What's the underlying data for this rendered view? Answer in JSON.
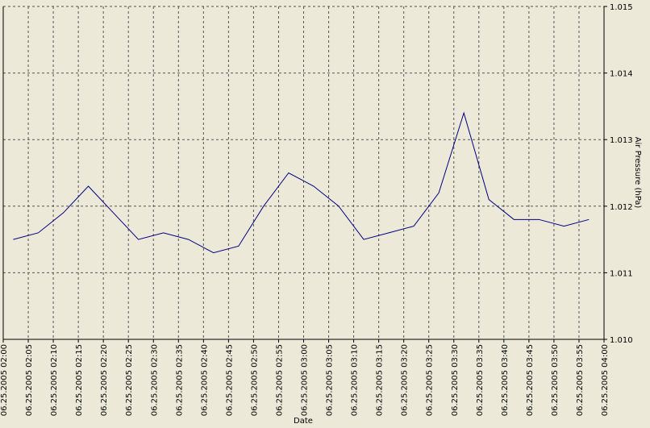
{
  "chart_data": {
    "type": "line",
    "xlabel": "Date",
    "ylabel": "Air Pressure (hPa)",
    "x": [
      "06.25.2005 02:02",
      "06.25.2005 02:07",
      "06.25.2005 02:12",
      "06.25.2005 02:17",
      "06.25.2005 02:22",
      "06.25.2005 02:27",
      "06.25.2005 02:32",
      "06.25.2005 02:37",
      "06.25.2005 02:42",
      "06.25.2005 02:47",
      "06.25.2005 02:52",
      "06.25.2005 02:57",
      "06.25.2005 03:02",
      "06.25.2005 03:07",
      "06.25.2005 03:12",
      "06.25.2005 03:17",
      "06.25.2005 03:22",
      "06.25.2005 03:27",
      "06.25.2005 03:32",
      "06.25.2005 03:37",
      "06.25.2005 03:42",
      "06.25.2005 03:47",
      "06.25.2005 03:52",
      "06.25.2005 03:57"
    ],
    "series": [
      {
        "color": "#000080",
        "values": [
          1.0115,
          1.0116,
          1.0119,
          1.0123,
          1.0119,
          1.0115,
          1.0116,
          1.0115,
          1.0113,
          1.0114,
          1.012,
          1.0125,
          1.0123,
          1.012,
          1.0115,
          1.0116,
          1.0117,
          1.0122,
          1.0134,
          1.0121,
          1.0118,
          1.0118,
          1.0117,
          1.0118
        ]
      }
    ],
    "xlim": [
      "06.25.2005 02:00",
      "06.25.2005 04:00"
    ],
    "xticks": [
      "06.25.2005 02:00",
      "06.25.2005 02:05",
      "06.25.2005 02:10",
      "06.25.2005 02:15",
      "06.25.2005 02:20",
      "06.25.2005 02:25",
      "06.25.2005 02:30",
      "06.25.2005 02:35",
      "06.25.2005 02:40",
      "06.25.2005 02:45",
      "06.25.2005 02:50",
      "06.25.2005 02:55",
      "06.25.2005 03:00",
      "06.25.2005 03:05",
      "06.25.2005 03:10",
      "06.25.2005 03:15",
      "06.25.2005 03:20",
      "06.25.2005 03:25",
      "06.25.2005 03:30",
      "06.25.2005 03:35",
      "06.25.2005 03:40",
      "06.25.2005 03:45",
      "06.25.2005 03:50",
      "06.25.2005 03:55",
      "06.25.2005 04:00"
    ],
    "ylim": [
      1.01,
      1.015
    ],
    "yticks": [
      {
        "value": 1.01,
        "label": "1.010"
      },
      1.011,
      1.012,
      1.013,
      1.014,
      1.015
    ],
    "grid": true
  }
}
